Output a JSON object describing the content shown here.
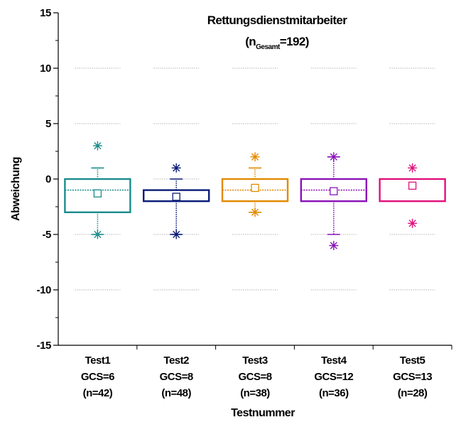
{
  "chart_data": {
    "type": "box",
    "title": "Rettungsdienstmitarbeiter",
    "subtitle": {
      "prefix": "(n",
      "subscript": "Gesamt",
      "suffix": "=192)"
    },
    "xlabel": "Testnummer",
    "ylabel": "Abweichung",
    "ylim": [
      -15,
      15
    ],
    "yticks": [
      -15,
      -10,
      -5,
      0,
      5,
      10,
      15
    ],
    "ytick_labels": [
      "-15",
      "-10",
      "-5",
      "0",
      "5",
      "10",
      "15"
    ],
    "grid": "horizontal dotted",
    "categories": [
      {
        "line1": "Test1",
        "line2": "GCS=6",
        "line3": "(n=42)"
      },
      {
        "line1": "Test2",
        "line2": "GCS=8",
        "line3": "(n=48)"
      },
      {
        "line1": "Test3",
        "line2": "GCS=8",
        "line3": "(n=38)"
      },
      {
        "line1": "Test4",
        "line2": "GCS=12",
        "line3": "(n=36)"
      },
      {
        "line1": "Test5",
        "line2": "GCS=13",
        "line3": "(n=28)"
      }
    ],
    "series": [
      {
        "color": "#1a8c8c",
        "q1": -3,
        "median": -1,
        "q3": 0,
        "mean": -1.3,
        "whisker_low": -5,
        "whisker_high": 1,
        "extremes": [
          3,
          -5
        ]
      },
      {
        "color": "#0a1a78",
        "q1": -2,
        "median": -1,
        "q3": -1,
        "mean": -1.6,
        "whisker_low": -5,
        "whisker_high": 0,
        "extremes": [
          1,
          -5
        ]
      },
      {
        "color": "#e28a00",
        "q1": -2,
        "median": -1,
        "q3": 0,
        "mean": -0.8,
        "whisker_low": -3,
        "whisker_high": 1,
        "extremes": [
          2,
          -3
        ]
      },
      {
        "color": "#8a12b8",
        "q1": -2,
        "median": -1,
        "q3": 0,
        "mean": -1.1,
        "whisker_low": -5,
        "whisker_high": 2,
        "extremes": [
          2,
          -6
        ]
      },
      {
        "color": "#e0117c",
        "q1": -2,
        "median": 0,
        "q3": 0,
        "mean": -0.6,
        "whisker_low": -2,
        "whisker_high": 0,
        "extremes": [
          1,
          -4
        ]
      }
    ]
  }
}
